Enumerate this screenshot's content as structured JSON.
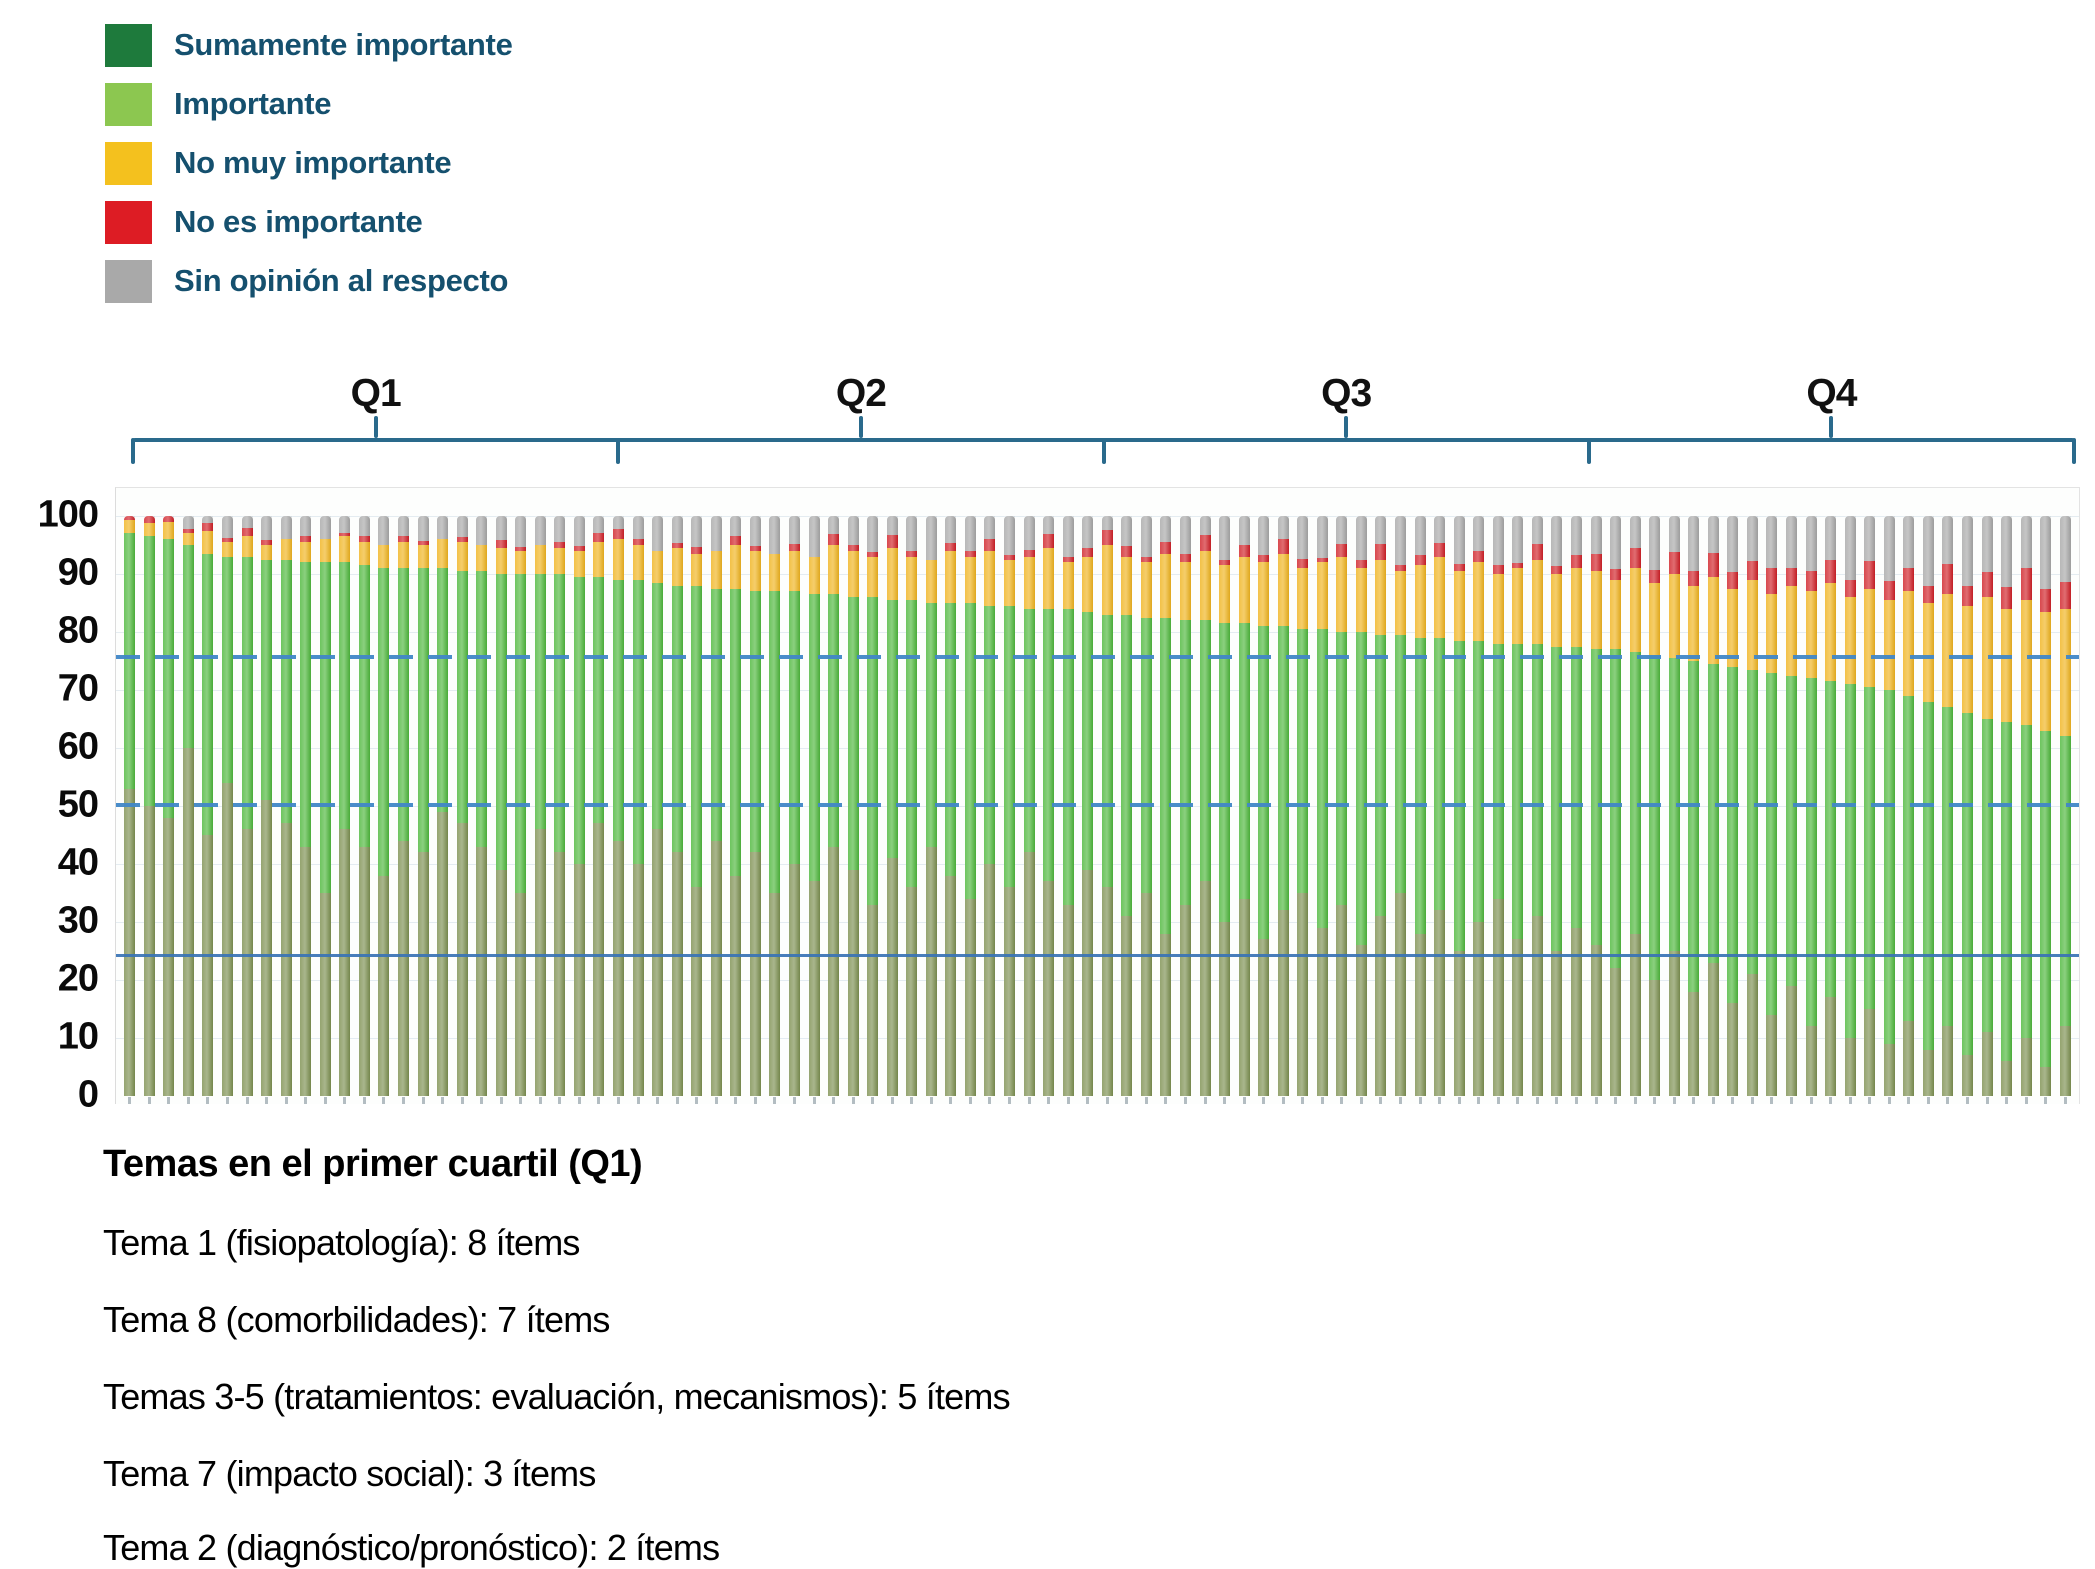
{
  "legend": {
    "items": [
      {
        "label": "Sumamente importante",
        "color": "#1e7a3c"
      },
      {
        "label": "Importante",
        "color": "#8cc750"
      },
      {
        "label": "No muy importante",
        "color": "#f4c11e"
      },
      {
        "label": "No es importante",
        "color": "#dd1c24"
      },
      {
        "label": "Sin opinión al respecto",
        "color": "#a9a9a9"
      }
    ],
    "text_color": "#15506e"
  },
  "quartiles": {
    "labels": [
      "Q1",
      "Q2",
      "Q3",
      "Q4"
    ]
  },
  "y_axis": {
    "ticks": [
      0,
      10,
      20,
      30,
      40,
      50,
      60,
      70,
      80,
      90,
      100
    ],
    "max": 100
  },
  "chart_data": {
    "type": "bar",
    "stacked": true,
    "percent_stacked": true,
    "orientation": "vertical",
    "title": "",
    "xlabel": "",
    "ylabel": "",
    "ylim": [
      0,
      100
    ],
    "grid": "faint horizontal every 10",
    "legend_position": "top-left",
    "series_order": [
      "Sumamente importante",
      "Importante",
      "No muy importante",
      "No es importante",
      "Sin opinión al respecto"
    ],
    "bar_colors": {
      "sumamente_importante": "#7d9051",
      "importante": "#4eb83c",
      "no_muy_importante": "#f0b41f",
      "no_es_importante": "#d02027",
      "sin_opinion": "#a8a8a8"
    },
    "reference_lines": [
      {
        "value": 76,
        "style": "dashed",
        "color": "#4187c7"
      },
      {
        "value": 50.5,
        "style": "dashed",
        "color": "#4187c7"
      },
      {
        "value": 24.5,
        "style": "solid",
        "color": "#3873b5"
      }
    ],
    "quartile_groups": {
      "bars_per_quartile": 25,
      "labels": [
        "Q1",
        "Q2",
        "Q3",
        "Q4"
      ]
    },
    "bars": [
      [
        53,
        44,
        2.3,
        0.7,
        0
      ],
      [
        50,
        46.5,
        2.3,
        1.2,
        0
      ],
      [
        48,
        48,
        3,
        1,
        0
      ],
      [
        60,
        35,
        2,
        0.8,
        2.2
      ],
      [
        45,
        48.5,
        4,
        1.3,
        1.2
      ],
      [
        54,
        39,
        2.5,
        0.7,
        3.8
      ],
      [
        46,
        47,
        3.5,
        1.5,
        2
      ],
      [
        51,
        41.5,
        2.5,
        0.9,
        4.1
      ],
      [
        47,
        45.5,
        3.5,
        0,
        4
      ],
      [
        43,
        49,
        3.5,
        1.1,
        3.4
      ],
      [
        35,
        57,
        4,
        0,
        4
      ],
      [
        46,
        46,
        4.5,
        0.6,
        2.9
      ],
      [
        43,
        48.5,
        4,
        1,
        3.5
      ],
      [
        38,
        53,
        4,
        0,
        5
      ],
      [
        44,
        47,
        4.5,
        1,
        3.5
      ],
      [
        42,
        49,
        4,
        0.7,
        4.3
      ],
      [
        49,
        42,
        5,
        0,
        4
      ],
      [
        47,
        43.5,
        5,
        0.9,
        3.6
      ],
      [
        43,
        47.5,
        4.5,
        0,
        5
      ],
      [
        39,
        51,
        4.5,
        1.3,
        4.2
      ],
      [
        35,
        55,
        4,
        0.6,
        5.4
      ],
      [
        46,
        44,
        5,
        0,
        5
      ],
      [
        42,
        48,
        4.5,
        1.1,
        4.4
      ],
      [
        40,
        49.5,
        4.5,
        0.9,
        5.1
      ],
      [
        47,
        42.5,
        6,
        1.6,
        2.9
      ],
      [
        44,
        45,
        7,
        1.8,
        2.2
      ],
      [
        40,
        49,
        6,
        1,
        4
      ],
      [
        46,
        42.5,
        5.5,
        0,
        6
      ],
      [
        42,
        46,
        6.5,
        0.8,
        4.7
      ],
      [
        36,
        52,
        5.5,
        1.2,
        5.3
      ],
      [
        44,
        43.5,
        6.5,
        0,
        6
      ],
      [
        38,
        49.5,
        7.5,
        1.5,
        3.5
      ],
      [
        42,
        45,
        7,
        0.9,
        5.1
      ],
      [
        35,
        52,
        6.5,
        0,
        6.5
      ],
      [
        40,
        47,
        7,
        1.1,
        4.9
      ],
      [
        37,
        49.5,
        6.5,
        0,
        7
      ],
      [
        43,
        43.5,
        8.5,
        1.9,
        3.1
      ],
      [
        39,
        47,
        8,
        1,
        5
      ],
      [
        33,
        53,
        7,
        0.8,
        6.2
      ],
      [
        41,
        44.5,
        9,
        2.2,
        3.3
      ],
      [
        36,
        49.5,
        7.5,
        1,
        6
      ],
      [
        43,
        42,
        7.5,
        0,
        7.5
      ],
      [
        38,
        47,
        9,
        1.4,
        4.6
      ],
      [
        34,
        51,
        8,
        0.9,
        6.1
      ],
      [
        40,
        44.5,
        9.5,
        2,
        4
      ],
      [
        36,
        48.5,
        8,
        0.7,
        6.8
      ],
      [
        42,
        42,
        9,
        1.2,
        5.8
      ],
      [
        37,
        47,
        10.5,
        2.4,
        3.1
      ],
      [
        33,
        51,
        8,
        0.9,
        7.1
      ],
      [
        39,
        44.5,
        9.5,
        1.5,
        5.5
      ],
      [
        36,
        47,
        12,
        2.6,
        2.4
      ],
      [
        31,
        52,
        10,
        1.8,
        5.2
      ],
      [
        35,
        47.5,
        9.5,
        1,
        7
      ],
      [
        28,
        54.5,
        11,
        2.1,
        4.4
      ],
      [
        33,
        49,
        10,
        1.5,
        6.5
      ],
      [
        37,
        45,
        12,
        2.8,
        3.2
      ],
      [
        30,
        51.5,
        10,
        1,
        7.5
      ],
      [
        34,
        47.5,
        11.5,
        2,
        5
      ],
      [
        27,
        54,
        11,
        1.2,
        6.8
      ],
      [
        32,
        49,
        12.5,
        2.5,
        4
      ],
      [
        35,
        45.5,
        10.5,
        1.6,
        7.4
      ],
      [
        29,
        51.5,
        11.5,
        0.8,
        7.2
      ],
      [
        33,
        47,
        13,
        2.2,
        4.8
      ],
      [
        26,
        54,
        11,
        1.4,
        7.6
      ],
      [
        31,
        48.5,
        13,
        2.7,
        4.8
      ],
      [
        35,
        44.5,
        11,
        1,
        8.5
      ],
      [
        28,
        51,
        12.5,
        1.8,
        6.7
      ],
      [
        32,
        47,
        14,
        2.4,
        4.6
      ],
      [
        25,
        53.5,
        12,
        1.2,
        8.3
      ],
      [
        30,
        48.5,
        13.5,
        2,
        6
      ],
      [
        34,
        44,
        12,
        1.5,
        8.5
      ],
      [
        27,
        51,
        13,
        0.9,
        8.1
      ],
      [
        31,
        47,
        14.5,
        2.6,
        4.9
      ],
      [
        25,
        52.5,
        12.5,
        1.3,
        8.7
      ],
      [
        29,
        48.5,
        13.5,
        2.2,
        6.8
      ],
      [
        26,
        51,
        13.5,
        3,
        6.5
      ],
      [
        22,
        55,
        12,
        1.8,
        9.2
      ],
      [
        28,
        48.5,
        14.5,
        3.5,
        5.5
      ],
      [
        20,
        56,
        12.5,
        2.2,
        9.3
      ],
      [
        25,
        50.5,
        14.5,
        3.8,
        6.2
      ],
      [
        18,
        57,
        13,
        2.5,
        9.5
      ],
      [
        23,
        51.5,
        15,
        4.2,
        6.3
      ],
      [
        16,
        58,
        13.5,
        2.8,
        9.7
      ],
      [
        21,
        52.5,
        15.5,
        3.2,
        7.8
      ],
      [
        14,
        59,
        13.5,
        4.5,
        9
      ],
      [
        19,
        53.5,
        15.5,
        3,
        9
      ],
      [
        12,
        60,
        15,
        3.6,
        9.4
      ],
      [
        17,
        54.5,
        17,
        4,
        7.5
      ],
      [
        10,
        61,
        15,
        2.9,
        11.1
      ],
      [
        15,
        55.5,
        17,
        4.8,
        7.7
      ],
      [
        9,
        61,
        15.5,
        3.3,
        11.2
      ],
      [
        13,
        56,
        18,
        4,
        9
      ],
      [
        8,
        60,
        17,
        3,
        12
      ],
      [
        12,
        55,
        19.5,
        5.2,
        8.3
      ],
      [
        7,
        59,
        18.5,
        3.5,
        12
      ],
      [
        11,
        54,
        21,
        4.4,
        9.6
      ],
      [
        6,
        58.5,
        19.5,
        3.8,
        12.2
      ],
      [
        10,
        54,
        21.5,
        5.5,
        9
      ],
      [
        5,
        58,
        20.5,
        4,
        12.5
      ],
      [
        12,
        50,
        22,
        4.6,
        11.4
      ]
    ]
  },
  "footer": {
    "title": "Temas en el primer cuartil (Q1)",
    "lines": [
      "Tema 1 (fisiopatología): 8 ítems",
      "Tema 8 (comorbilidades): 7 ítems",
      "Temas 3-5 (tratamientos: evaluación, mecanismos): 5 ítems",
      "Tema 7 (impacto social): 3 ítems",
      "Tema 2 (diagnóstico/pronóstico): 2 ítems"
    ]
  }
}
